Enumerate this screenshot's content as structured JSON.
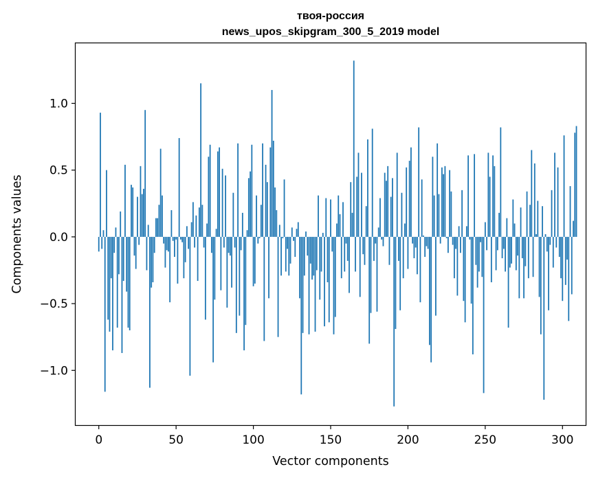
{
  "chart_data": {
    "type": "bar",
    "title_line1": "твоя-россия",
    "title_line2": "news_upos_skipgram_300_5_2019 model",
    "xlabel": "Vector components",
    "ylabel": "Components values",
    "xlim": [
      -15,
      315
    ],
    "ylim": [
      -1.41,
      1.45
    ],
    "x_ticks": [
      0,
      50,
      100,
      150,
      200,
      250,
      300
    ],
    "x_tick_labels": [
      "0",
      "50",
      "100",
      "150",
      "200",
      "250",
      "300"
    ],
    "y_ticks": [
      -1.0,
      -0.5,
      0.0,
      0.5,
      1.0
    ],
    "y_tick_labels": [
      "−1.0",
      "−0.5",
      "0.0",
      "0.5",
      "1.0"
    ],
    "bar_color": "#1f77b4",
    "values": [
      -0.11,
      0.93,
      -0.09,
      0.05,
      -1.16,
      0.5,
      -0.62,
      -0.71,
      -0.31,
      -0.85,
      -0.12,
      0.07,
      -0.68,
      -0.28,
      0.19,
      -0.87,
      -0.33,
      0.54,
      -0.41,
      -0.68,
      -0.7,
      0.39,
      0.37,
      -0.14,
      -0.24,
      0.3,
      -0.06,
      0.53,
      0.32,
      0.36,
      0.95,
      -0.25,
      0.09,
      -1.13,
      -0.38,
      -0.34,
      -0.12,
      0.14,
      0.14,
      0.24,
      0.66,
      0.31,
      -0.05,
      -0.23,
      -0.1,
      -0.11,
      -0.49,
      0.2,
      -0.03,
      -0.15,
      -0.02,
      -0.35,
      0.74,
      -0.02,
      -0.04,
      -0.31,
      -0.19,
      0.08,
      -0.09,
      -1.04,
      0.11,
      0.26,
      -0.08,
      0.16,
      -0.33,
      0.22,
      1.15,
      0.24,
      -0.08,
      -0.62,
      0.1,
      0.6,
      0.69,
      -0.12,
      -0.94,
      -0.47,
      0.06,
      0.64,
      0.67,
      -0.4,
      0.51,
      -0.08,
      0.46,
      -0.53,
      -0.12,
      -0.14,
      -0.38,
      0.33,
      -0.08,
      -0.72,
      0.7,
      -0.59,
      -0.1,
      0.18,
      -0.85,
      -0.66,
      0.05,
      0.44,
      0.49,
      0.69,
      -0.37,
      -0.35,
      0.31,
      -0.05,
      -0.01,
      0.24,
      0.7,
      -0.78,
      0.54,
      0.41,
      -0.46,
      0.67,
      1.1,
      0.72,
      0.37,
      0.2,
      -0.75,
      0.09,
      -0.29,
      -0.01,
      0.43,
      -0.26,
      -0.09,
      -0.29,
      -0.2,
      0.07,
      -0.03,
      -0.15,
      0.06,
      0.11,
      -0.46,
      -1.18,
      -0.72,
      -0.29,
      0.04,
      -0.14,
      -0.73,
      -0.2,
      -0.32,
      -0.29,
      -0.71,
      -0.25,
      0.31,
      -0.47,
      -0.26,
      0.03,
      -0.67,
      0.29,
      -0.34,
      -0.64,
      0.28,
      -0.11,
      -0.73,
      -0.6,
      0.1,
      0.31,
      0.17,
      -0.31,
      0.26,
      -0.26,
      -0.05,
      -0.18,
      -0.42,
      0.41,
      0.18,
      1.32,
      -0.26,
      0.45,
      0.63,
      -0.45,
      0.48,
      -0.13,
      -0.21,
      0.23,
      0.73,
      -0.8,
      -0.57,
      0.81,
      -0.18,
      -0.05,
      -0.56,
      0.07,
      0.29,
      -0.02,
      -0.07,
      0.48,
      0.42,
      0.53,
      -0.21,
      0.3,
      0.44,
      -1.27,
      -0.69,
      0.63,
      -0.18,
      -0.55,
      0.33,
      -0.31,
      0.1,
      0.52,
      -0.24,
      0.57,
      0.67,
      -0.05,
      -0.16,
      -0.08,
      -0.28,
      0.82,
      -0.49,
      0.43,
      0.01,
      -0.15,
      -0.07,
      -0.09,
      -0.81,
      -0.94,
      0.6,
      0.31,
      -0.59,
      0.7,
      0.32,
      -0.05,
      0.52,
      0.47,
      0.53,
      -0.01,
      -0.12,
      0.5,
      0.34,
      -0.06,
      -0.31,
      -0.09,
      -0.44,
      0.08,
      -0.12,
      0.35,
      -0.48,
      -0.64,
      0.08,
      0.61,
      -0.02,
      -0.5,
      -0.88,
      0.62,
      -0.21,
      -0.38,
      -0.26,
      -0.04,
      -0.3,
      -1.17,
      0.11,
      -0.1,
      0.63,
      0.45,
      -0.34,
      0.61,
      0.53,
      -0.25,
      -0.1,
      0.18,
      0.82,
      -0.16,
      -0.09,
      -0.26,
      0.14,
      -0.68,
      -0.23,
      -0.2,
      0.28,
      0.1,
      -0.25,
      -0.14,
      -0.46,
      0.22,
      -0.16,
      -0.46,
      -0.22,
      0.34,
      -0.31,
      0.24,
      0.65,
      -0.3,
      0.55,
      0.02,
      0.27,
      -0.45,
      -0.73,
      0.23,
      -1.22,
      0.02,
      -0.11,
      -0.55,
      -0.06,
      0.35,
      -0.23,
      0.63,
      -0.08,
      0.52,
      -0.15,
      -0.31,
      -0.48,
      0.76,
      -0.36,
      -0.17,
      -0.63,
      0.38,
      -0.43,
      0.12,
      0.78,
      0.83
    ]
  }
}
